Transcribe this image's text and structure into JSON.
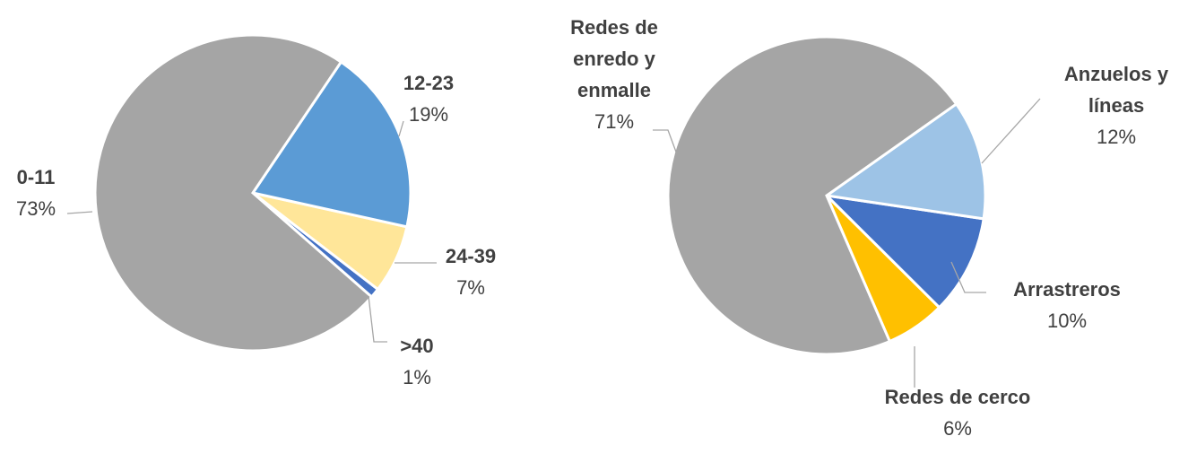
{
  "chart_data": [
    {
      "type": "pie",
      "categories": [
        "0-11",
        "12-23",
        "24-39",
        ">40"
      ],
      "values": [
        73,
        19,
        7,
        1
      ],
      "value_labels": [
        "73%",
        "19%",
        "7%",
        "1%"
      ],
      "colors": [
        "#a5a5a5",
        "#5b9bd5",
        "#ffe699",
        "#4472c4"
      ]
    },
    {
      "type": "pie",
      "categories": [
        "Redes de enredo y enmalle",
        "Anzuelos y líneas",
        "Arrastreros",
        "Redes de cerco"
      ],
      "values": [
        71,
        12,
        10,
        6
      ],
      "value_labels": [
        "71%",
        "12%",
        "10%",
        "6%"
      ],
      "colors": [
        "#a5a5a5",
        "#9dc3e6",
        "#4472c4",
        "#ffc000"
      ]
    }
  ]
}
